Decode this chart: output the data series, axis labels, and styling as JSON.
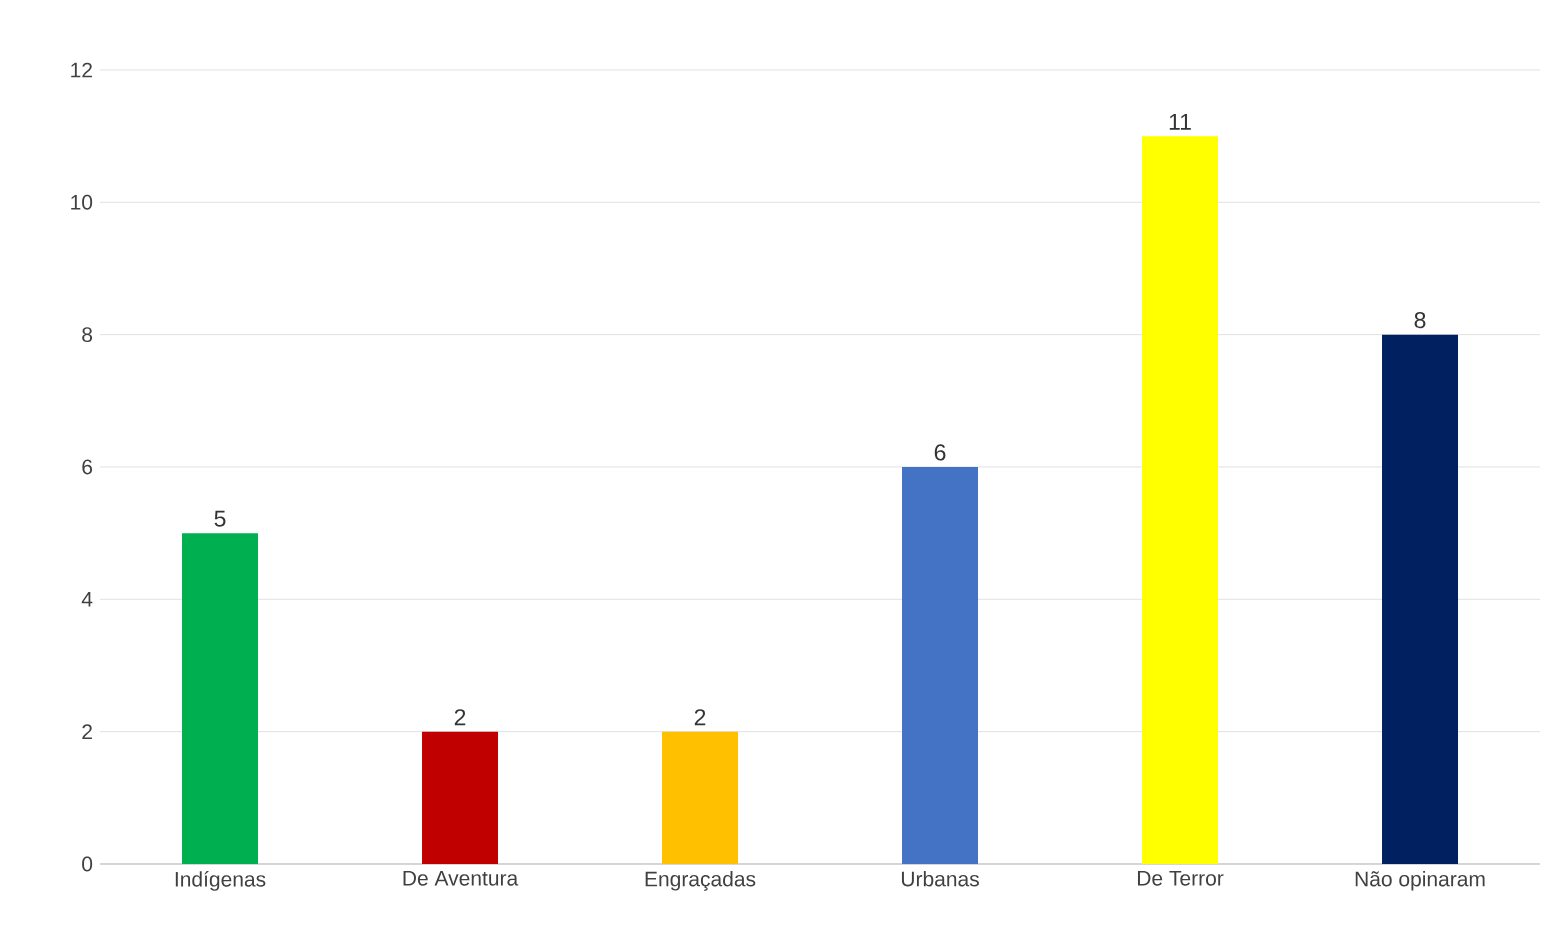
{
  "chart_data": {
    "type": "bar",
    "categories": [
      "Indígenas",
      "De Aventura",
      "Engraçadas",
      "Urbanas",
      "De Terror",
      "Não opinaram"
    ],
    "values": [
      5,
      2,
      2,
      6,
      11,
      8
    ],
    "colors": [
      "#00b050",
      "#c00000",
      "#ffc000",
      "#4472c4",
      "#ffff00",
      "#002060"
    ],
    "ylim": [
      0,
      12
    ],
    "yticks": [
      0,
      2,
      4,
      6,
      8,
      10,
      12
    ],
    "grid": "y",
    "data_labels": true
  }
}
